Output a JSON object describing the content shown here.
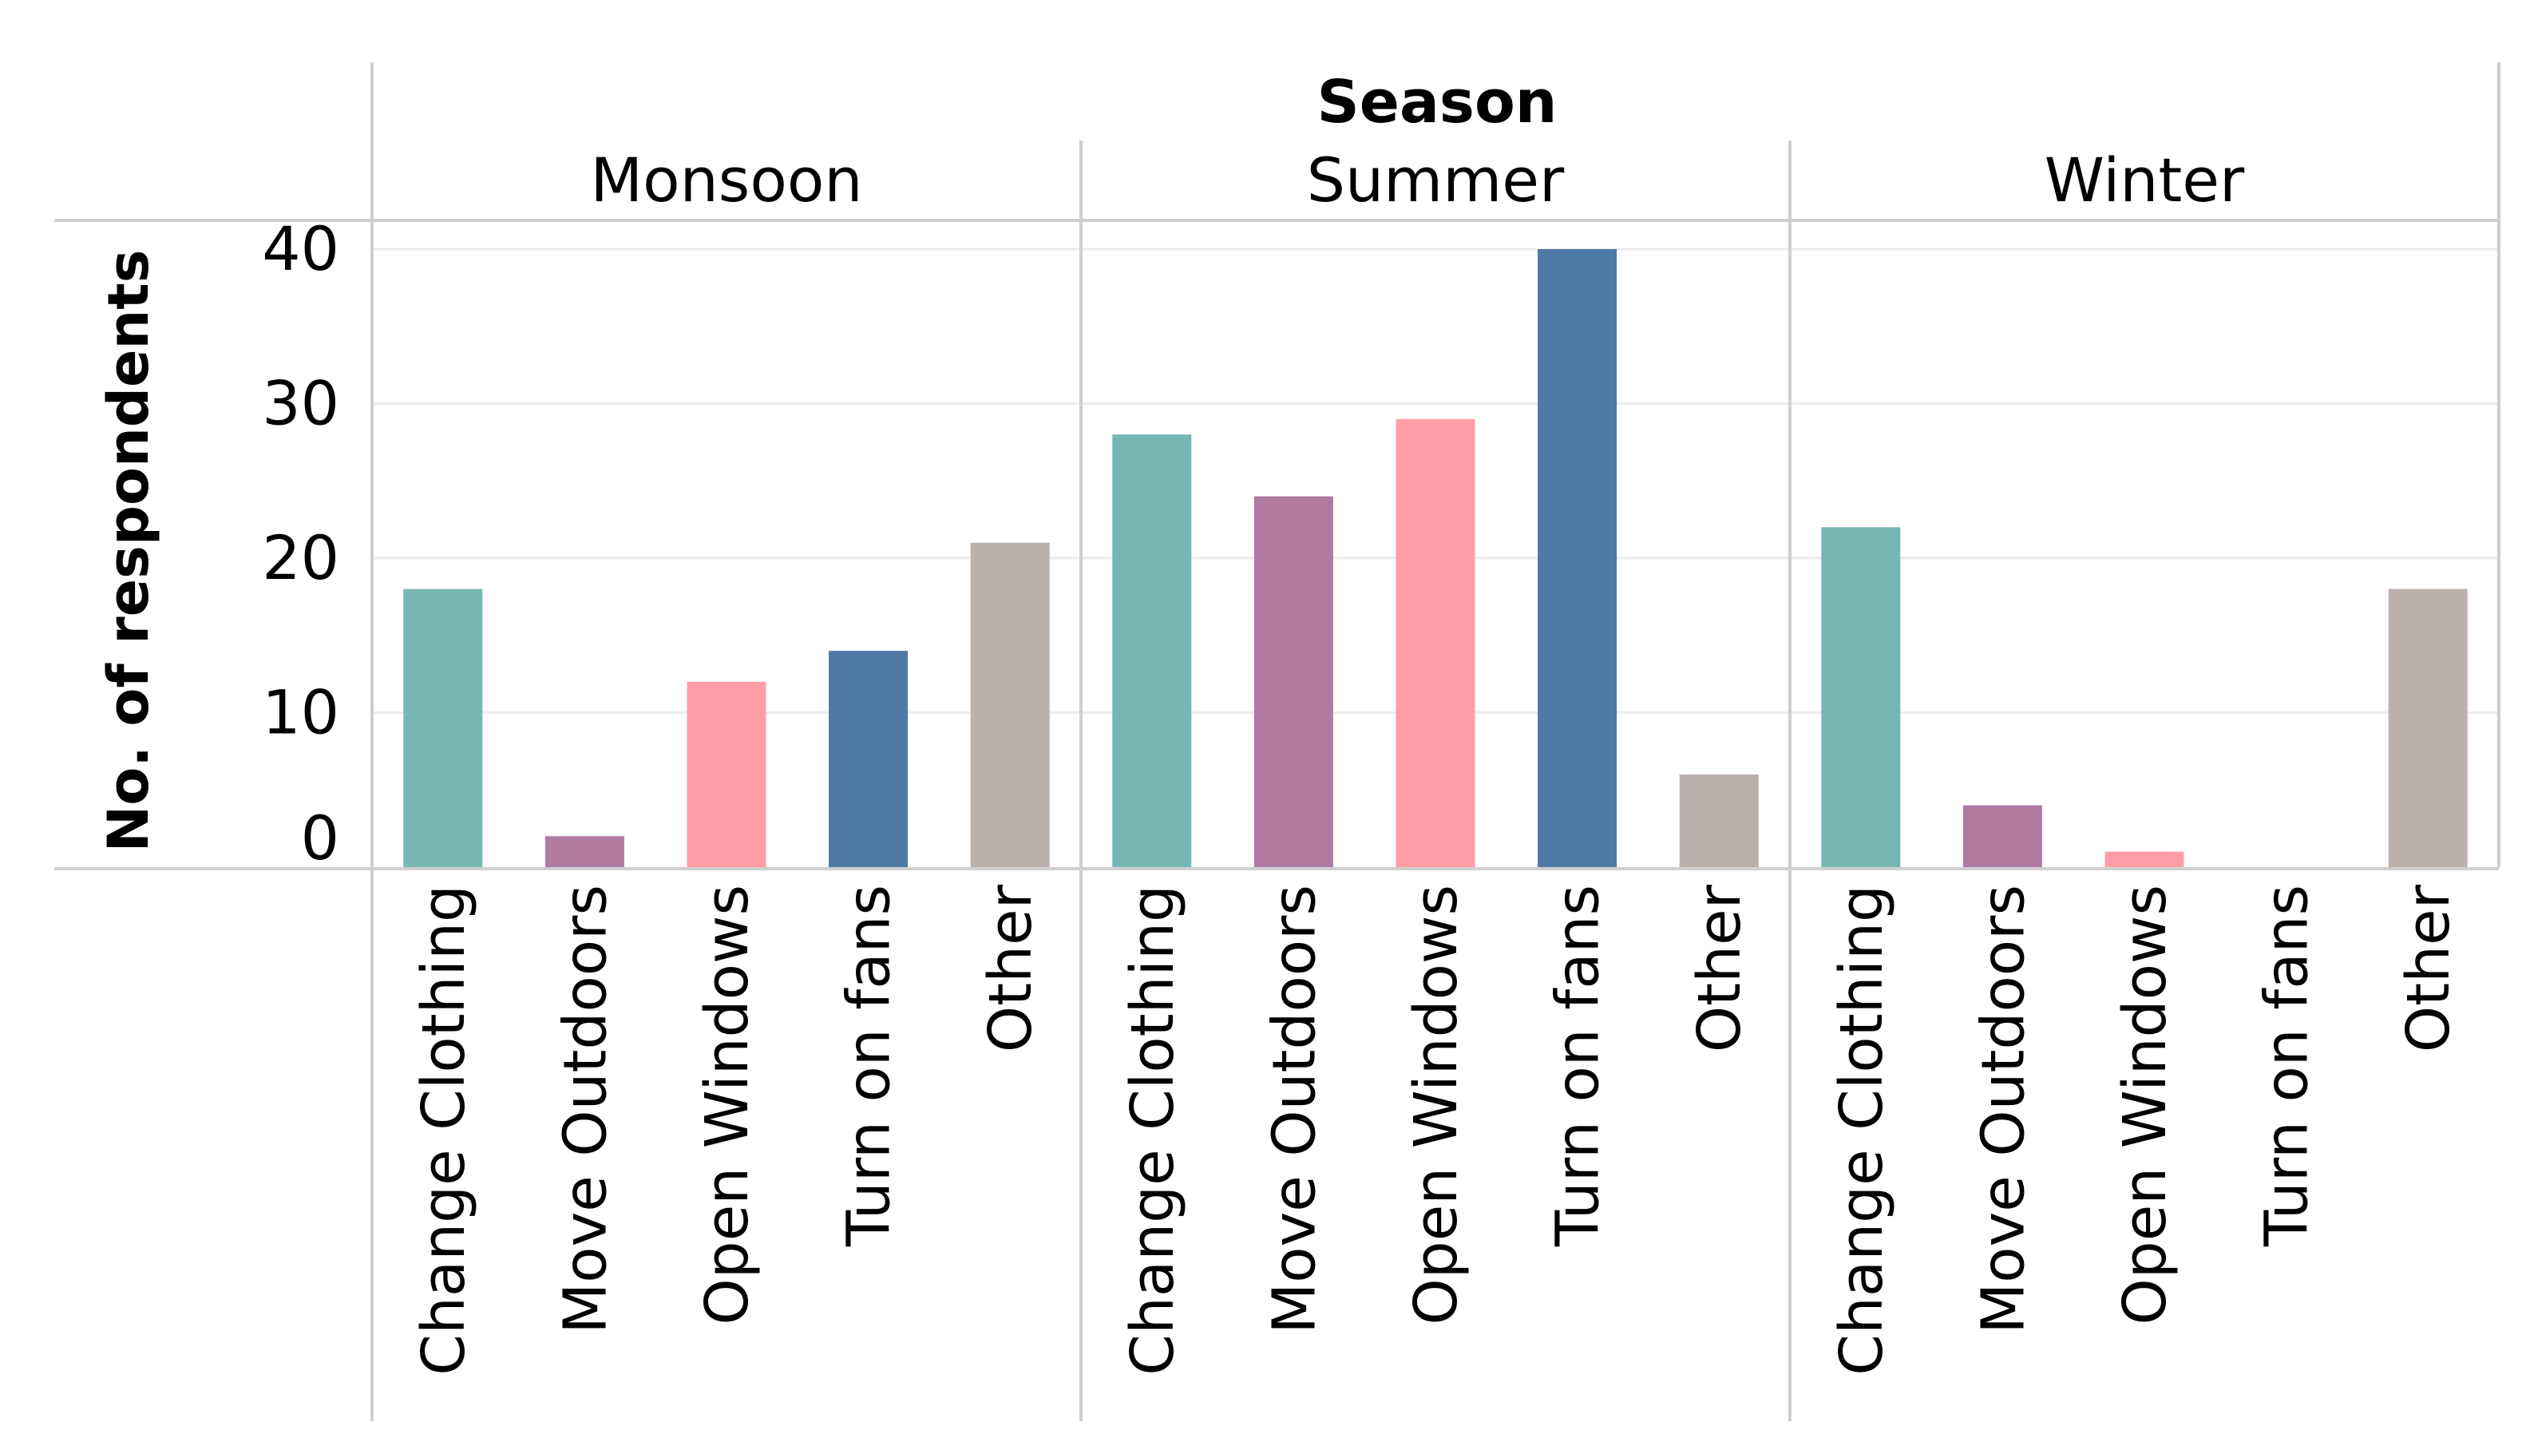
{
  "chart_data": {
    "type": "bar",
    "facet_title": "Season",
    "ylabel": "No. of respondents",
    "ylim": [
      0,
      40
    ],
    "yticks": [
      0,
      10,
      20,
      30,
      40
    ],
    "categories": [
      "Change Clothing",
      "Move Outdoors",
      "Open Windows",
      "Turn on fans",
      "Other"
    ],
    "colors": {
      "Change Clothing": "#76b7b2",
      "Move Outdoors": "#b07aa1",
      "Open Windows": "#ff9da7",
      "Turn on fans": "#4e79a7",
      "Other": "#bab0ac"
    },
    "panels": [
      {
        "season": "Monsoon",
        "values": [
          18,
          2,
          12,
          14,
          21
        ]
      },
      {
        "season": "Summer",
        "values": [
          28,
          24,
          29,
          40,
          6
        ]
      },
      {
        "season": "Winter",
        "values": [
          22,
          4,
          1,
          0,
          18
        ]
      }
    ]
  }
}
